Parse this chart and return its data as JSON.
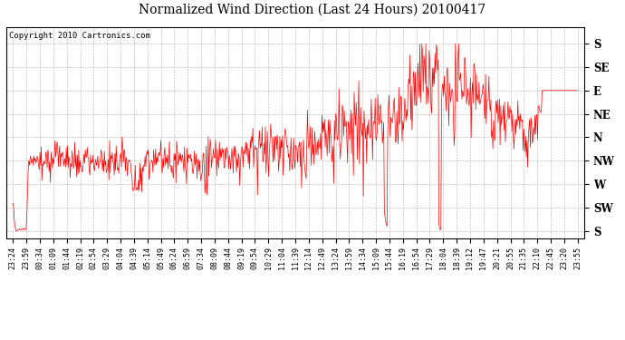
{
  "title": "Normalized Wind Direction (Last 24 Hours) 20100417",
  "copyright": "Copyright 2010 Cartronics.com",
  "line_color": "#ff0000",
  "background_color": "#ffffff",
  "grid_color": "#b0b0b0",
  "ytick_labels": [
    "S",
    "SE",
    "E",
    "NE",
    "N",
    "NW",
    "W",
    "SW",
    "S"
  ],
  "ytick_values": [
    8,
    7,
    6,
    5,
    4,
    3,
    2,
    1,
    0
  ],
  "ylim": [
    -0.3,
    8.7
  ],
  "xtick_labels": [
    "23:24",
    "23:59",
    "00:34",
    "01:09",
    "01:44",
    "02:19",
    "02:54",
    "03:29",
    "04:04",
    "04:39",
    "05:14",
    "05:49",
    "06:24",
    "06:59",
    "07:34",
    "08:09",
    "08:44",
    "09:19",
    "09:54",
    "10:29",
    "11:04",
    "11:39",
    "12:14",
    "12:49",
    "13:24",
    "13:59",
    "14:34",
    "15:09",
    "15:44",
    "16:19",
    "16:54",
    "17:29",
    "18:04",
    "18:39",
    "19:12",
    "19:47",
    "20:21",
    "20:55",
    "21:35",
    "22:10",
    "22:45",
    "23:20",
    "23:55"
  ],
  "figsize": [
    6.9,
    3.75
  ],
  "dpi": 100
}
